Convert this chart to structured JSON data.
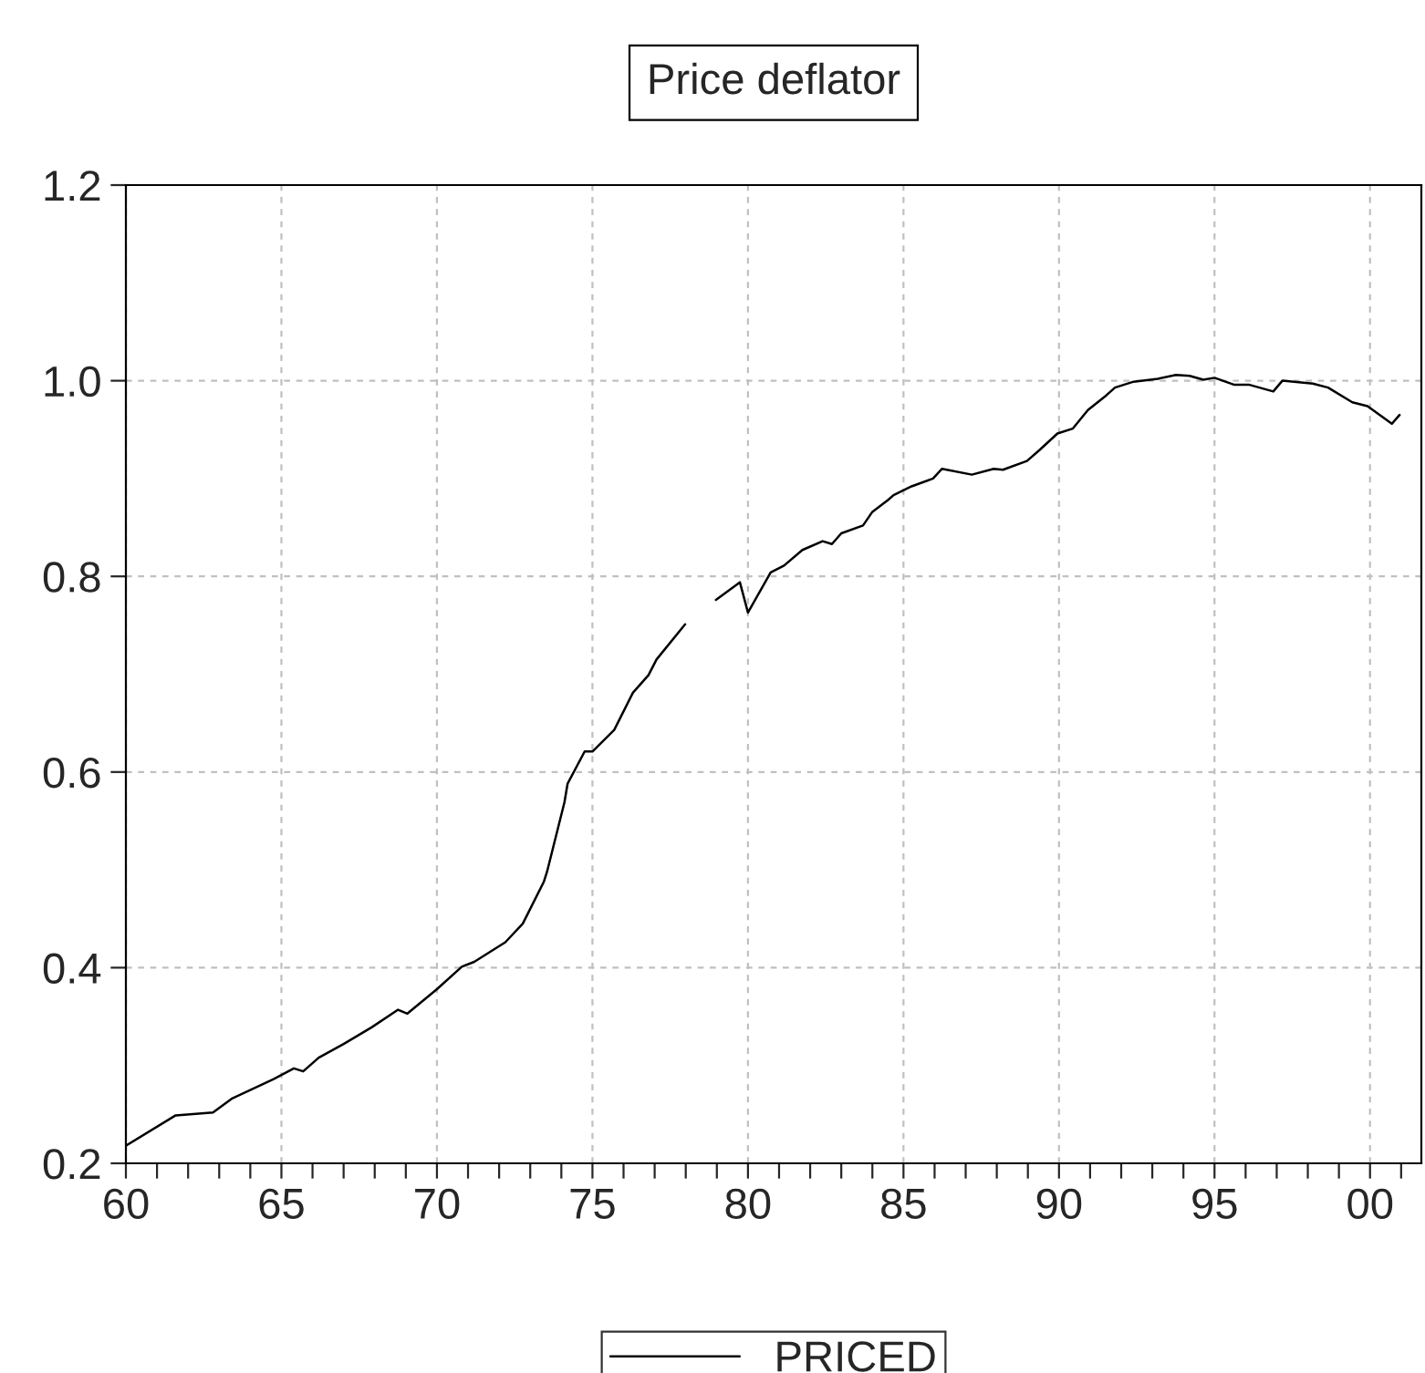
{
  "chart_data": {
    "type": "line",
    "title": "Price deflator",
    "x": [
      1960,
      1961.6,
      1962.8,
      1963.4,
      1964.75,
      1965.4,
      1965.7,
      1966.2,
      1967.0,
      1967.9,
      1968.75,
      1969.05,
      1970.0,
      1970.8,
      1971.2,
      1972.2,
      1972.76,
      1973.44,
      1973.54,
      1974.1,
      1974.2,
      1974.75,
      1975.0,
      1975.7,
      1976.3,
      1976.8,
      1977.06,
      1977.98,
      1978.5,
      1978.97,
      1979.74,
      1980.0,
      1980.73,
      1981.16,
      1981.75,
      1982.4,
      1982.7,
      1983.0,
      1983.7,
      1984.0,
      1984.5,
      1984.68,
      1985.26,
      1985.95,
      1986.24,
      1987.2,
      1987.9,
      1988.2,
      1988.97,
      1989.37,
      1989.95,
      1990.44,
      1990.93,
      1991.52,
      1991.8,
      1992.4,
      1993.18,
      1993.76,
      1994.2,
      1994.64,
      1995.0,
      1995.62,
      1996.1,
      1996.89,
      1997.18,
      1998.16,
      1998.65,
      1999.43,
      1999.92,
      2000.7,
      2000.95
    ],
    "series": [
      {
        "name": "PRICED",
        "color": "#000000",
        "values": [
          0.218,
          0.249,
          0.252,
          0.266,
          0.286,
          0.297,
          0.294,
          0.308,
          0.322,
          0.339,
          0.357,
          0.353,
          0.378,
          0.401,
          0.406,
          0.426,
          0.445,
          0.488,
          0.498,
          0.569,
          0.588,
          0.621,
          0.621,
          0.643,
          0.681,
          0.699,
          0.715,
          0.751,
          null,
          0.776,
          0.794,
          0.763,
          0.804,
          0.811,
          0.827,
          0.836,
          0.833,
          0.844,
          0.852,
          0.866,
          0.878,
          0.883,
          0.892,
          0.9,
          0.91,
          0.904,
          0.91,
          0.909,
          0.918,
          0.929,
          0.946,
          0.951,
          0.97,
          0.985,
          0.993,
          0.999,
          1.002,
          1.006,
          1.005,
          1.001,
          1.003,
          0.996,
          0.996,
          0.989,
          1.0,
          0.997,
          0.993,
          0.978,
          0.974,
          0.956,
          0.965
        ]
      }
    ],
    "xlim": [
      1960,
      2001.65
    ],
    "ylim": [
      0.2,
      1.2
    ],
    "xticks": [
      {
        "value": 1960,
        "label": "60"
      },
      {
        "value": 1965,
        "label": "65"
      },
      {
        "value": 1970,
        "label": "70"
      },
      {
        "value": 1975,
        "label": "75"
      },
      {
        "value": 1980,
        "label": "80"
      },
      {
        "value": 1985,
        "label": "85"
      },
      {
        "value": 1990,
        "label": "90"
      },
      {
        "value": 1995,
        "label": "95"
      },
      {
        "value": 2000,
        "label": "00"
      }
    ],
    "yticks": [
      {
        "value": 0.2,
        "label": "0.2"
      },
      {
        "value": 0.4,
        "label": "0.4"
      },
      {
        "value": 0.6,
        "label": "0.6"
      },
      {
        "value": 0.8,
        "label": "0.8"
      },
      {
        "value": 1.0,
        "label": "1.0"
      },
      {
        "value": 1.2,
        "label": "1.2"
      }
    ],
    "grid": true,
    "legend": "bottom",
    "line_style": "solid",
    "marker": "none"
  }
}
